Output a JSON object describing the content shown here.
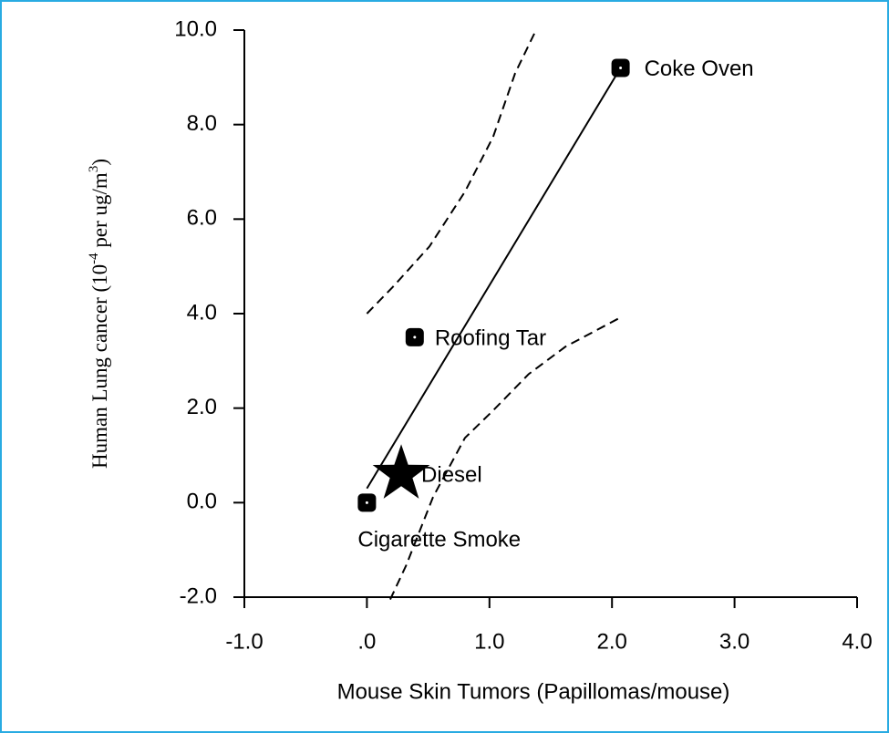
{
  "chart_data": {
    "type": "scatter",
    "x_label": "Mouse Skin Tumors  (Papillomas/mouse)",
    "y_label": [
      "Human Lung cancer (10",
      "-4",
      " per ug/m",
      "3",
      ")"
    ],
    "xlim": [
      -1,
      4
    ],
    "ylim": [
      -2,
      10
    ],
    "xticks": [
      {
        "value": -1,
        "label": "-1.0"
      },
      {
        "value": 0,
        "label": ".0"
      },
      {
        "value": 1,
        "label": "1.0"
      },
      {
        "value": 2,
        "label": "2.0"
      },
      {
        "value": 3,
        "label": "3.0"
      },
      {
        "value": 4,
        "label": "4.0"
      }
    ],
    "yticks": [
      {
        "value": -2,
        "label": "-2.0"
      },
      {
        "value": 0,
        "label": "0.0"
      },
      {
        "value": 2,
        "label": "2.0"
      },
      {
        "value": 4,
        "label": "4.0"
      },
      {
        "value": 6,
        "label": "6.0"
      },
      {
        "value": 8,
        "label": "8.0"
      },
      {
        "value": 10,
        "label": "10.0"
      }
    ],
    "color": "#000000",
    "series": [
      {
        "x": [
          2.07,
          0.39,
          0,
          0.28
        ],
        "values": [
          9.2,
          3.5,
          0,
          0.6
        ],
        "labels": [
          "Coke Oven",
          "Roofing Tar",
          "Cigarette Smoke",
          "Diesel"
        ],
        "markers": [
          "square",
          "square",
          "square",
          "star"
        ]
      },
      {
        "style": "solid",
        "x": [
          0,
          2.07
        ],
        "values": [
          0.3,
          9.2
        ]
      },
      {
        "style": "dashed",
        "x": [
          0,
          0.21,
          0.51,
          0.8,
          1.03,
          1.21,
          1.38
        ],
        "values": [
          4.0,
          4.56,
          5.42,
          6.58,
          7.74,
          9.09,
          10.0
        ]
      },
      {
        "style": "dashed",
        "x": [
          0.19,
          0.32,
          0.54,
          0.8,
          1.03,
          1.32,
          1.62,
          2.07
        ],
        "values": [
          -2.05,
          -1.33,
          0.12,
          1.37,
          1.95,
          2.72,
          3.3,
          3.92
        ]
      }
    ]
  }
}
